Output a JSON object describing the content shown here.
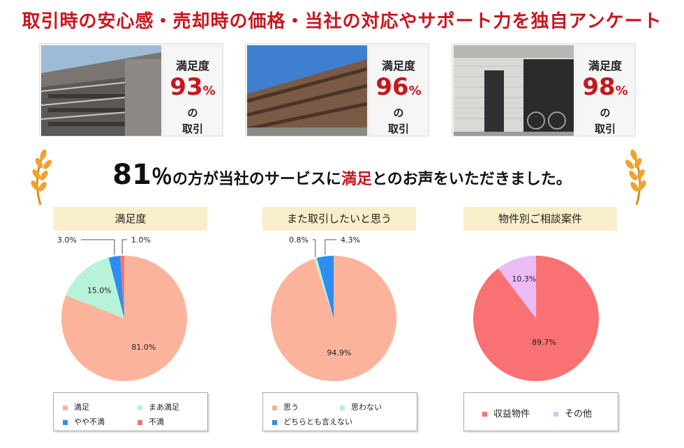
{
  "headline": "取引時の安心感・売却時の価格・当社の対応やサポート力を独自アンケート",
  "cards": [
    {
      "top": "満足度",
      "pct": "93",
      "pct_sign": "%",
      "no": "の",
      "bottom": "取引"
    },
    {
      "top": "満足度",
      "pct": "96",
      "pct_sign": "%",
      "no": "の",
      "bottom": "取引"
    },
    {
      "top": "満足度",
      "pct": "98",
      "pct_sign": "%",
      "no": "の",
      "bottom": "取引"
    }
  ],
  "tagline": {
    "number": "81",
    "percent": "％",
    "part1": "の方が当社のサービスに",
    "highlight": "満足",
    "part2": "とのお声をいただきました。"
  },
  "colors": {
    "accent_red": "#c8161d",
    "title_bg": "#f8eec9"
  },
  "chart_data": [
    {
      "type": "pie",
      "title": "満足度",
      "slices": [
        {
          "label": "満足",
          "value": 81.0,
          "color": "#fbb49b",
          "display": "81.0%"
        },
        {
          "label": "まあ満足",
          "value": 15.0,
          "color": "#b7f3d8",
          "display": "15.0%"
        },
        {
          "label": "やや不満",
          "value": 3.0,
          "color": "#2e8df0",
          "display": "3.0%"
        },
        {
          "label": "不満",
          "value": 1.0,
          "color": "#f97172",
          "display": "1.0%"
        }
      ]
    },
    {
      "type": "pie",
      "title": "また取引したいと思う",
      "slices": [
        {
          "label": "思う",
          "value": 94.9,
          "color": "#fbb49b",
          "display": "94.9%"
        },
        {
          "label": "思わない",
          "value": 0.8,
          "color": "#b7f3d8",
          "display": "0.8%"
        },
        {
          "label": "どちらとも言えない",
          "value": 4.3,
          "color": "#2e8df0",
          "display": "4.3%"
        }
      ]
    },
    {
      "type": "pie",
      "title": "物件別ご相談案件",
      "slices": [
        {
          "label": "収益物件",
          "value": 89.7,
          "color": "#f97172",
          "display": "89.7%"
        },
        {
          "label": "その他",
          "value": 10.3,
          "color": "#ebbcf5",
          "display": "10.3%"
        }
      ]
    }
  ]
}
